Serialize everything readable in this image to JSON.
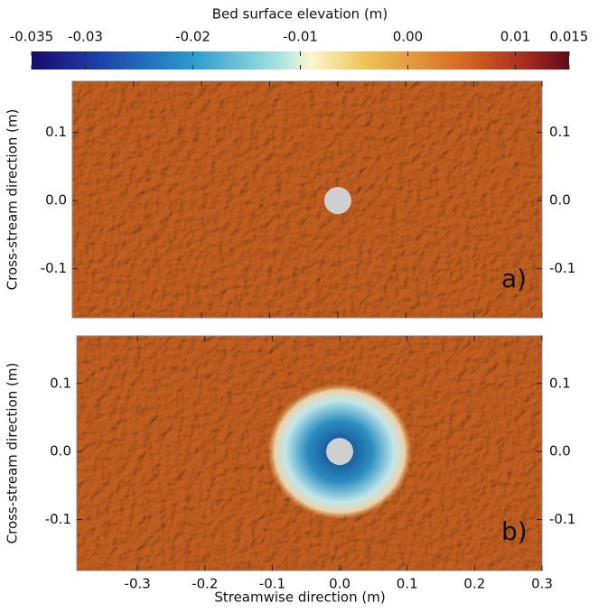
{
  "chart_data": {
    "type": "heatmap",
    "colorbar": {
      "title": "Bed surface elevation (m)",
      "lim": [
        -0.035,
        0.015
      ],
      "ticks": [
        -0.035,
        -0.03,
        -0.02,
        -0.01,
        {
          "value": 0,
          "label": "0.00"
        },
        0.01,
        0.015
      ]
    },
    "xlabel": "Streamwise direction (m)",
    "ylabel": "Cross-stream direction (m)",
    "xlim": [
      -0.39,
      0.3
    ],
    "xticks": [
      -0.3,
      -0.2,
      -0.1,
      {
        "value": 0,
        "label": "0.0"
      },
      0.1,
      0.2,
      0.3
    ],
    "panels": [
      {
        "label": "a)",
        "scour": false,
        "ylim": [
          -0.172,
          0.175
        ],
        "yticks": [
          0.1,
          {
            "value": 0,
            "label": "0.0"
          },
          -0.1
        ]
      },
      {
        "label": "b)",
        "scour": true,
        "ylim": [
          -0.175,
          0.17
        ],
        "yticks": [
          0.1,
          {
            "value": 0,
            "label": "0.0"
          },
          -0.1
        ]
      }
    ]
  }
}
